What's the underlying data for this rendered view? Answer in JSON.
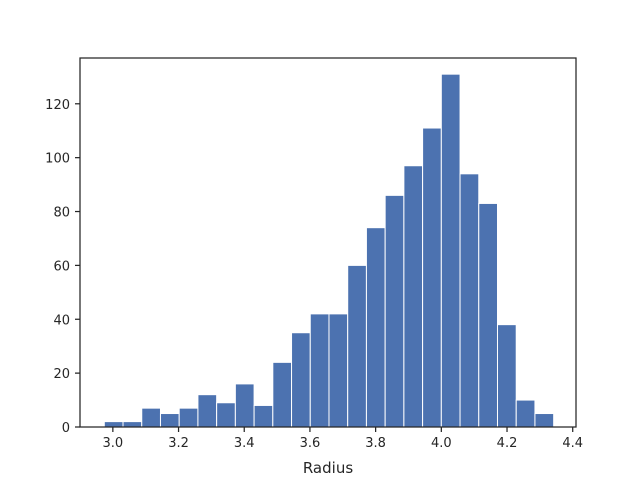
{
  "chart_data": {
    "type": "bar",
    "xlabel": "Radius",
    "ylabel": "",
    "xlim": [
      2.9,
      4.41
    ],
    "ylim": [
      0,
      137
    ],
    "grid": false,
    "bar_color": "#4c72b0",
    "edge_color": "#ffffff",
    "axis_color": "#262626",
    "bin_edges": [
      2.974,
      3.031,
      3.088,
      3.145,
      3.202,
      3.259,
      3.316,
      3.373,
      3.43,
      3.487,
      3.544,
      3.601,
      3.658,
      3.715,
      3.772,
      3.829,
      3.886,
      3.943,
      4.0,
      4.057,
      4.114,
      4.171,
      4.228,
      4.285,
      4.342
    ],
    "values": [
      2,
      2,
      7,
      5,
      7,
      12,
      9,
      16,
      8,
      24,
      35,
      42,
      42,
      60,
      74,
      86,
      97,
      111,
      131,
      94,
      83,
      38,
      10,
      5
    ],
    "xticks": [
      3.0,
      3.2,
      3.4,
      3.6,
      3.8,
      4.0,
      4.2,
      4.4
    ],
    "xtick_labels": [
      "3.0",
      "3.2",
      "3.4",
      "3.6",
      "3.8",
      "4.0",
      "4.2",
      "4.4"
    ],
    "yticks": [
      0,
      20,
      40,
      60,
      80,
      100,
      120
    ],
    "ytick_labels": [
      "0",
      "20",
      "40",
      "60",
      "80",
      "100",
      "120"
    ]
  }
}
